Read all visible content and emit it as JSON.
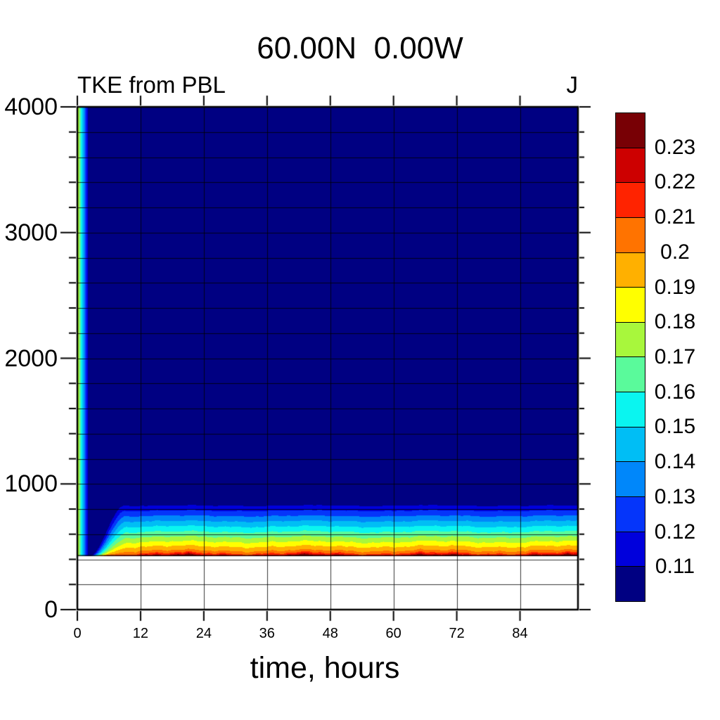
{
  "page": {
    "background": "#FFFFFF"
  },
  "chart_data": {
    "type": "filled_contour",
    "title": "60.00N  0.00W",
    "left_header": "TKE from PBL",
    "right_header": "J",
    "xlabel": "time, hours",
    "x_range_hours": [
      0,
      95
    ],
    "x_ticks": [
      0,
      12,
      24,
      36,
      48,
      60,
      72,
      84
    ],
    "y_range_m": [
      0,
      4000
    ],
    "y_ticks": [
      0,
      1000,
      2000,
      3000,
      4000
    ],
    "y_minor_step_m": 200,
    "grid": {
      "x_step_hours": 12,
      "y_step_m": 200,
      "color": "rgba(0,0,0,0.78)"
    },
    "frame_color": "#000000",
    "levels": [
      0.11,
      0.12,
      0.13,
      0.14,
      0.15,
      0.16,
      0.17,
      0.18,
      0.19,
      0.2,
      0.21,
      0.22,
      0.23
    ],
    "colorbar_labels_top_to_bottom": [
      "0.23",
      "0.22",
      "0.21",
      "0.2",
      "0.19",
      "0.18",
      "0.17",
      "0.16",
      "0.15",
      "0.14",
      "0.13",
      "0.12",
      "0.11"
    ],
    "palette_low_to_high": [
      "#000082",
      "#0000DC",
      "#0535FA",
      "#0087FA",
      "#00BEF5",
      "#0AF5F0",
      "#5AFA9B",
      "#A8F73C",
      "#FFFF00",
      "#FFB000",
      "#FF7300",
      "#FF2300",
      "#CD0000",
      "#780005"
    ],
    "field": {
      "surface_height_m": 430,
      "boundary_base_heights_m": [
        830,
        790,
        748,
        706,
        664,
        622,
        580,
        542,
        505,
        472,
        452,
        440,
        430
      ],
      "spinup_hours": {
        "start": 2.3,
        "end": 8.8,
        "per_level_delay": 0.18
      },
      "initial_profile": {
        "surface_value": 0.185,
        "decay_end_hour": 2.1
      },
      "wiggle": {
        "amp_base_m": 6,
        "amp_per_level_m": 1.1,
        "harmonics": [
          {
            "weight": 0.5,
            "period": 24,
            "phase": -3.67,
            "level_phase": 0.0
          },
          {
            "weight": 0.3,
            "period": 7.3,
            "phase": 0.8,
            "level_phase": 0.15
          },
          {
            "weight": 0.25,
            "period": 3.1,
            "phase": 2.1,
            "level_phase": 0.0
          },
          {
            "weight": 0.15,
            "period": 1.9,
            "phase": 0.0,
            "level_phase": 0.7
          }
        ]
      }
    }
  }
}
